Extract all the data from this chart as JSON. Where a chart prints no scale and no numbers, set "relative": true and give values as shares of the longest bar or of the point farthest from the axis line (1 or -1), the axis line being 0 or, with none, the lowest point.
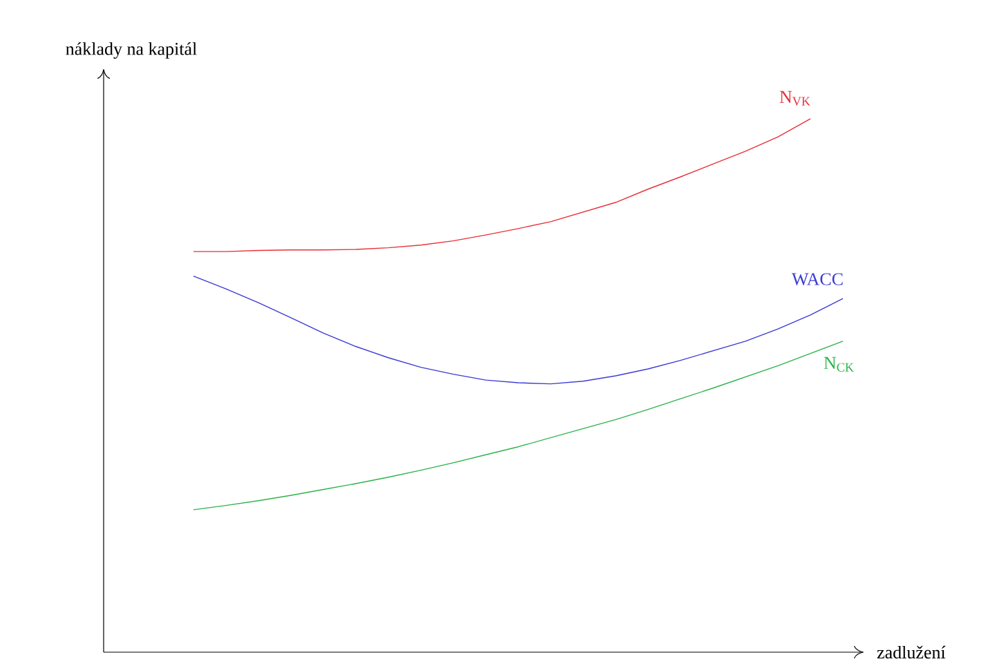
{
  "chart_data": {
    "type": "line",
    "relative": true,
    "xlabel": "zadlužení",
    "ylabel": "náklady na kapitál",
    "categories": [
      null,
      null,
      null,
      null,
      null,
      null,
      null,
      null,
      null,
      null,
      null,
      null,
      null,
      null,
      null,
      null,
      null,
      null,
      null,
      null,
      null
    ],
    "series": [
      {
        "name": "N$_{VK}$",
        "color": "#e8303a",
        "values": [
          0.751,
          0.751,
          0.753,
          0.754,
          0.754,
          0.755,
          0.758,
          0.763,
          0.771,
          0.782,
          0.794,
          0.807,
          0.825,
          0.843,
          0.868,
          0.891,
          0.915,
          0.939,
          0.966,
          1,
          null
        ]
      },
      {
        "name": "WACC",
        "color": "#3b3bd6",
        "values": [
          0.705,
          0.681,
          0.655,
          0.627,
          0.598,
          0.573,
          0.552,
          0.534,
          0.521,
          0.51,
          0.505,
          0.503,
          0.508,
          0.518,
          0.531,
          0.547,
          0.565,
          0.583,
          0.606,
          0.632,
          0.663
        ]
      },
      {
        "name": "N$_{CK}$",
        "color": "#2db34a",
        "values": [
          0.267,
          0.275,
          0.284,
          0.294,
          0.305,
          0.316,
          0.328,
          0.341,
          0.355,
          0.37,
          0.385,
          0.402,
          0.419,
          0.436,
          0.455,
          0.475,
          0.495,
          0.516,
          0.537,
          0.56,
          0.583
        ]
      }
    ]
  }
}
